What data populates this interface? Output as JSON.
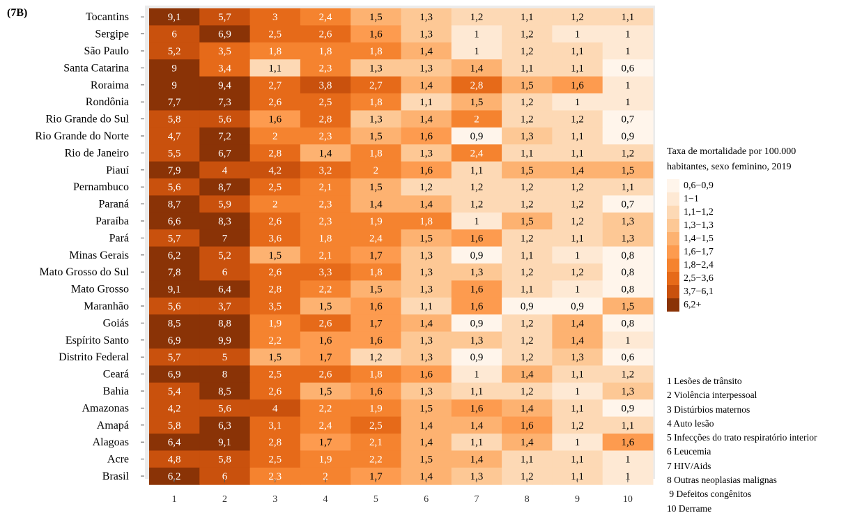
{
  "panel_label": "(7B)",
  "chart_data": {
    "type": "heatmap",
    "title": "",
    "xlabel": "",
    "ylabel": "",
    "x_categories": [
      "1",
      "2",
      "3",
      "4",
      "5",
      "6",
      "7",
      "8",
      "9",
      "10"
    ],
    "y_categories": [
      "Tocantins",
      "Sergipe",
      "São Paulo",
      "Santa Catarina",
      "Roraima",
      "Rondônia",
      "Rio Grande do Sul",
      "Rio Grande do Norte",
      "Rio de Janeiro",
      "Piauí",
      "Pernambuco",
      "Paraná",
      "Paraíba",
      "Pará",
      "Minas Gerais",
      "Mato Grosso do Sul",
      "Mato Grosso",
      "Maranhão",
      "Goiás",
      "Espírito Santo",
      "Distrito Federal",
      "Ceará",
      "Bahia",
      "Amazonas",
      "Amapá",
      "Alagoas",
      "Acre",
      "Brasil"
    ],
    "values": [
      [
        "9,1",
        "5,7",
        "3",
        "2,4",
        "1,5",
        "1,3",
        "1,2",
        "1,1",
        "1,2",
        "1,1"
      ],
      [
        "6",
        "6,9",
        "2,5",
        "2,6",
        "1,6",
        "1,3",
        "1",
        "1,2",
        "1",
        "1"
      ],
      [
        "5,2",
        "3,5",
        "1,8",
        "1,8",
        "1,8",
        "1,4",
        "1",
        "1,2",
        "1,1",
        "1"
      ],
      [
        "9",
        "3,4",
        "1,1",
        "2,3",
        "1,3",
        "1,3",
        "1,4",
        "1,1",
        "1,1",
        "0,6"
      ],
      [
        "9",
        "9,4",
        "2,7",
        "3,8",
        "2,7",
        "1,4",
        "2,8",
        "1,5",
        "1,6",
        "1"
      ],
      [
        "7,7",
        "7,3",
        "2,6",
        "2,5",
        "1,8",
        "1,1",
        "1,5",
        "1,2",
        "1",
        "1"
      ],
      [
        "5,8",
        "5,6",
        "1,6",
        "2,8",
        "1,3",
        "1,4",
        "2",
        "1,2",
        "1,2",
        "0,7"
      ],
      [
        "4,7",
        "7,2",
        "2",
        "2,3",
        "1,5",
        "1,6",
        "0,9",
        "1,3",
        "1,1",
        "0,9"
      ],
      [
        "5,5",
        "6,7",
        "2,8",
        "1,4",
        "1,8",
        "1,3",
        "2,4",
        "1,1",
        "1,1",
        "1,2"
      ],
      [
        "7,9",
        "4",
        "4,2",
        "3,2",
        "2",
        "1,6",
        "1,1",
        "1,5",
        "1,4",
        "1,5"
      ],
      [
        "5,6",
        "8,7",
        "2,5",
        "2,1",
        "1,5",
        "1,2",
        "1,2",
        "1,2",
        "1,2",
        "1,1"
      ],
      [
        "8,7",
        "5,9",
        "2",
        "2,3",
        "1,4",
        "1,4",
        "1,2",
        "1,2",
        "1,2",
        "0,7"
      ],
      [
        "6,6",
        "8,3",
        "2,6",
        "2,3",
        "1,9",
        "1,8",
        "1",
        "1,5",
        "1,2",
        "1,3"
      ],
      [
        "5,7",
        "7",
        "3,6",
        "1,8",
        "2,4",
        "1,5",
        "1,6",
        "1,2",
        "1,1",
        "1,3"
      ],
      [
        "6,2",
        "5,2",
        "1,5",
        "2,1",
        "1,7",
        "1,3",
        "0,9",
        "1,1",
        "1",
        "0,8"
      ],
      [
        "7,8",
        "6",
        "2,6",
        "3,3",
        "1,8",
        "1,3",
        "1,3",
        "1,2",
        "1,2",
        "0,8"
      ],
      [
        "9,1",
        "6,4",
        "2,8",
        "2,2",
        "1,5",
        "1,3",
        "1,6",
        "1,1",
        "1",
        "0,8"
      ],
      [
        "5,6",
        "3,7",
        "3,5",
        "1,5",
        "1,6",
        "1,1",
        "1,6",
        "0,9",
        "0,9",
        "1,5"
      ],
      [
        "8,5",
        "8,8",
        "1,9",
        "2,6",
        "1,7",
        "1,4",
        "0,9",
        "1,2",
        "1,4",
        "0,8"
      ],
      [
        "6,9",
        "9,9",
        "2,2",
        "1,6",
        "1,6",
        "1,3",
        "1,3",
        "1,2",
        "1,4",
        "1"
      ],
      [
        "5,7",
        "5",
        "1,5",
        "1,7",
        "1,2",
        "1,3",
        "0,9",
        "1,2",
        "1,3",
        "0,6"
      ],
      [
        "6,9",
        "8",
        "2,5",
        "2,6",
        "1,8",
        "1,6",
        "1",
        "1,4",
        "1,1",
        "1,2"
      ],
      [
        "5,4",
        "8,5",
        "2,6",
        "1,5",
        "1,6",
        "1,3",
        "1,1",
        "1,2",
        "1",
        "1,3"
      ],
      [
        "4,2",
        "5,6",
        "4",
        "2,2",
        "1,9",
        "1,5",
        "1,6",
        "1,4",
        "1,1",
        "0,9"
      ],
      [
        "5,8",
        "6,3",
        "3,1",
        "2,4",
        "2,5",
        "1,4",
        "1,4",
        "1,6",
        "1,2",
        "1,1"
      ],
      [
        "6,4",
        "9,1",
        "2,8",
        "1,7",
        "2,1",
        "1,4",
        "1,1",
        "1,4",
        "1",
        "1,6"
      ],
      [
        "4,8",
        "5,8",
        "2,5",
        "1,9",
        "2,2",
        "1,5",
        "1,4",
        "1,1",
        "1,1",
        "1"
      ],
      [
        "6,2",
        "6",
        "2,3",
        "2",
        "1,7",
        "1,4",
        "1,3",
        "1,2",
        "1,1",
        "1"
      ]
    ],
    "legend": {
      "title_lines": [
        "Taxa de mortalidade por 100.000",
        "habitantes, sexo feminino, 2019"
      ],
      "bins": [
        {
          "label": "0,6−0,9",
          "color": "#fff5eb"
        },
        {
          "label": "1−1",
          "color": "#fee9d4"
        },
        {
          "label": "1,1−1,2",
          "color": "#fdd9b5"
        },
        {
          "label": "1,3−1,3",
          "color": "#fdc895"
        },
        {
          "label": "1,4−1,5",
          "color": "#fdb271"
        },
        {
          "label": "1,6−1,7",
          "color": "#fd9b4f"
        },
        {
          "label": "1,8−2,4",
          "color": "#f5832f"
        },
        {
          "label": "2,5−3,6",
          "color": "#e66a19"
        },
        {
          "label": "3,7−6,1",
          "color": "#c9510d"
        },
        {
          "label": "6,2+",
          "color": "#8a3306"
        }
      ]
    },
    "cause_key": [
      "1 Lesões de trânsito",
      "2 Violência interpessoal",
      "3 Distúrbios maternos",
      "4 Auto lesão",
      "5 Infecções do trato respiratório interior",
      "6 Leucemia",
      "7 HIV/Aids",
      "8 Outras neoplasias malignas",
      " 9 Defeitos congênitos",
      "10 Derrame"
    ],
    "grid": false,
    "legend_position": "right"
  }
}
